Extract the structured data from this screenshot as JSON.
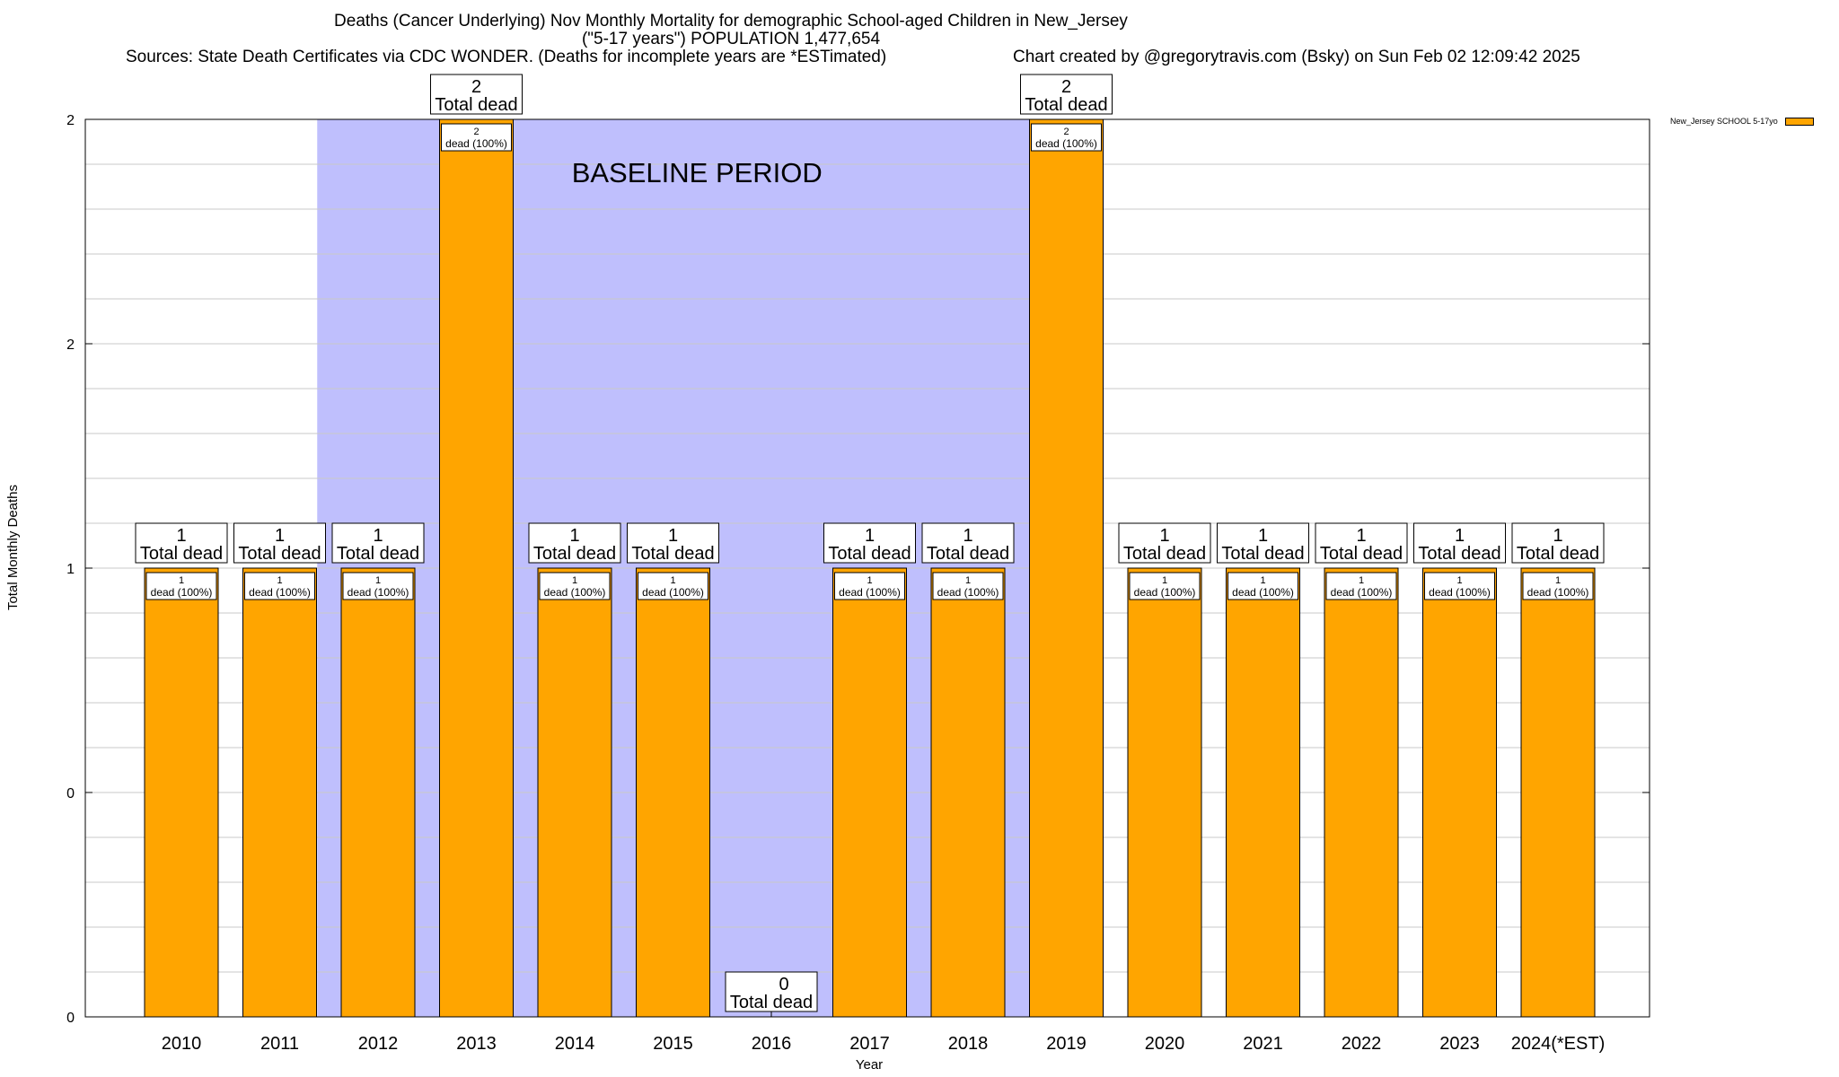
{
  "chart_data": {
    "type": "bar",
    "title_line1": "Deaths (Cancer Underlying) Nov Monthly Mortality for demographic School-aged Children in New_Jersey",
    "title_line2": "(\"5-17 years\") POPULATION 1,477,654",
    "sources": "Sources: State Death Certificates via CDC WONDER. (Deaths for incomplete years are *ESTimated)",
    "credit": "Chart created by @gregorytravis.com (Bsky) on Sun Feb 02 12:09:42 2025",
    "xlabel": "Year",
    "ylabel": "Total Monthly Deaths",
    "ylim": [
      0,
      2
    ],
    "ytick_labels": [
      "0",
      "0",
      "1",
      "2",
      "2"
    ],
    "grid": true,
    "baseline_label": "BASELINE PERIOD",
    "baseline_range": [
      "2012",
      "2019"
    ],
    "baseline_color": "#bfbffd",
    "bar_color": "#ffa500",
    "legend_position": "top-right",
    "categories": [
      "2010",
      "2011",
      "2012",
      "2013",
      "2014",
      "2015",
      "2016",
      "2017",
      "2018",
      "2019",
      "2020",
      "2021",
      "2022",
      "2023",
      "2024(*EST)"
    ],
    "series": [
      {
        "name": "New_Jersey SCHOOL 5-17yo",
        "values": [
          1,
          1,
          1,
          2,
          1,
          1,
          0,
          1,
          1,
          2,
          1,
          1,
          1,
          1,
          1
        ]
      }
    ],
    "total_label_suffix": "Total dead",
    "segment_label_suffix": "dead (100%)"
  }
}
